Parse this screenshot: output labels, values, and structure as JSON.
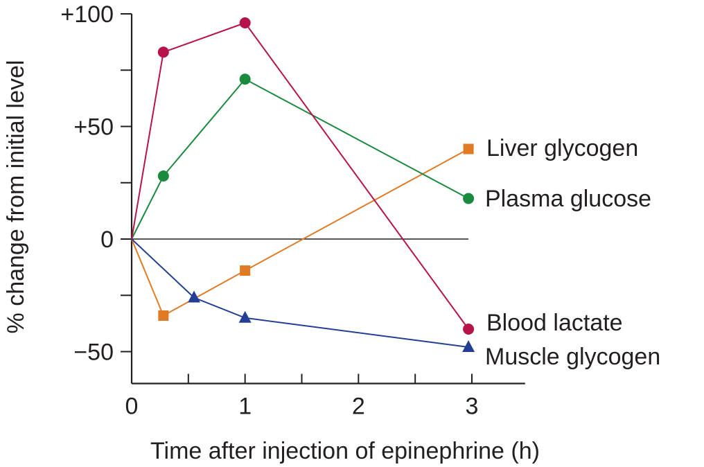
{
  "chart_data": {
    "type": "line",
    "title": "",
    "xlabel": "Time after injection of epinephrine (h)",
    "ylabel": "% change from initial level",
    "xlim": [
      0,
      3.5
    ],
    "ylim": [
      -64,
      100
    ],
    "x_ticks": [
      0,
      0.5,
      1,
      1.5,
      2,
      2.5,
      3
    ],
    "x_tick_labels": [
      "0",
      "",
      "1",
      "",
      "2",
      "",
      "3"
    ],
    "y_ticks": [
      100,
      75,
      50,
      25,
      0,
      -25,
      -50
    ],
    "y_tick_labels": [
      "+100",
      "",
      "+50",
      "",
      "0",
      "",
      "−50"
    ],
    "zero_line": true,
    "grid": false,
    "series": [
      {
        "name": "Liver glycogen",
        "color": "#e07b25",
        "marker": "square",
        "points": [
          [
            0,
            0
          ],
          [
            0.28,
            -34
          ],
          [
            1.0,
            -14
          ],
          [
            2.97,
            40
          ]
        ]
      },
      {
        "name": "Plasma glucose",
        "color": "#1a8a3e",
        "marker": "circle",
        "points": [
          [
            0,
            0
          ],
          [
            0.28,
            28
          ],
          [
            1.0,
            71
          ],
          [
            2.97,
            18
          ]
        ]
      },
      {
        "name": "Blood lactate",
        "color": "#b5134a",
        "marker": "circle",
        "points": [
          [
            0,
            0
          ],
          [
            0.28,
            83
          ],
          [
            1.0,
            96
          ],
          [
            2.97,
            -40
          ]
        ]
      },
      {
        "name": "Muscle glycogen",
        "color": "#233f95",
        "marker": "triangle",
        "points": [
          [
            0,
            0
          ],
          [
            0.55,
            -26
          ],
          [
            1.0,
            -35
          ],
          [
            2.97,
            -48
          ]
        ]
      }
    ]
  }
}
